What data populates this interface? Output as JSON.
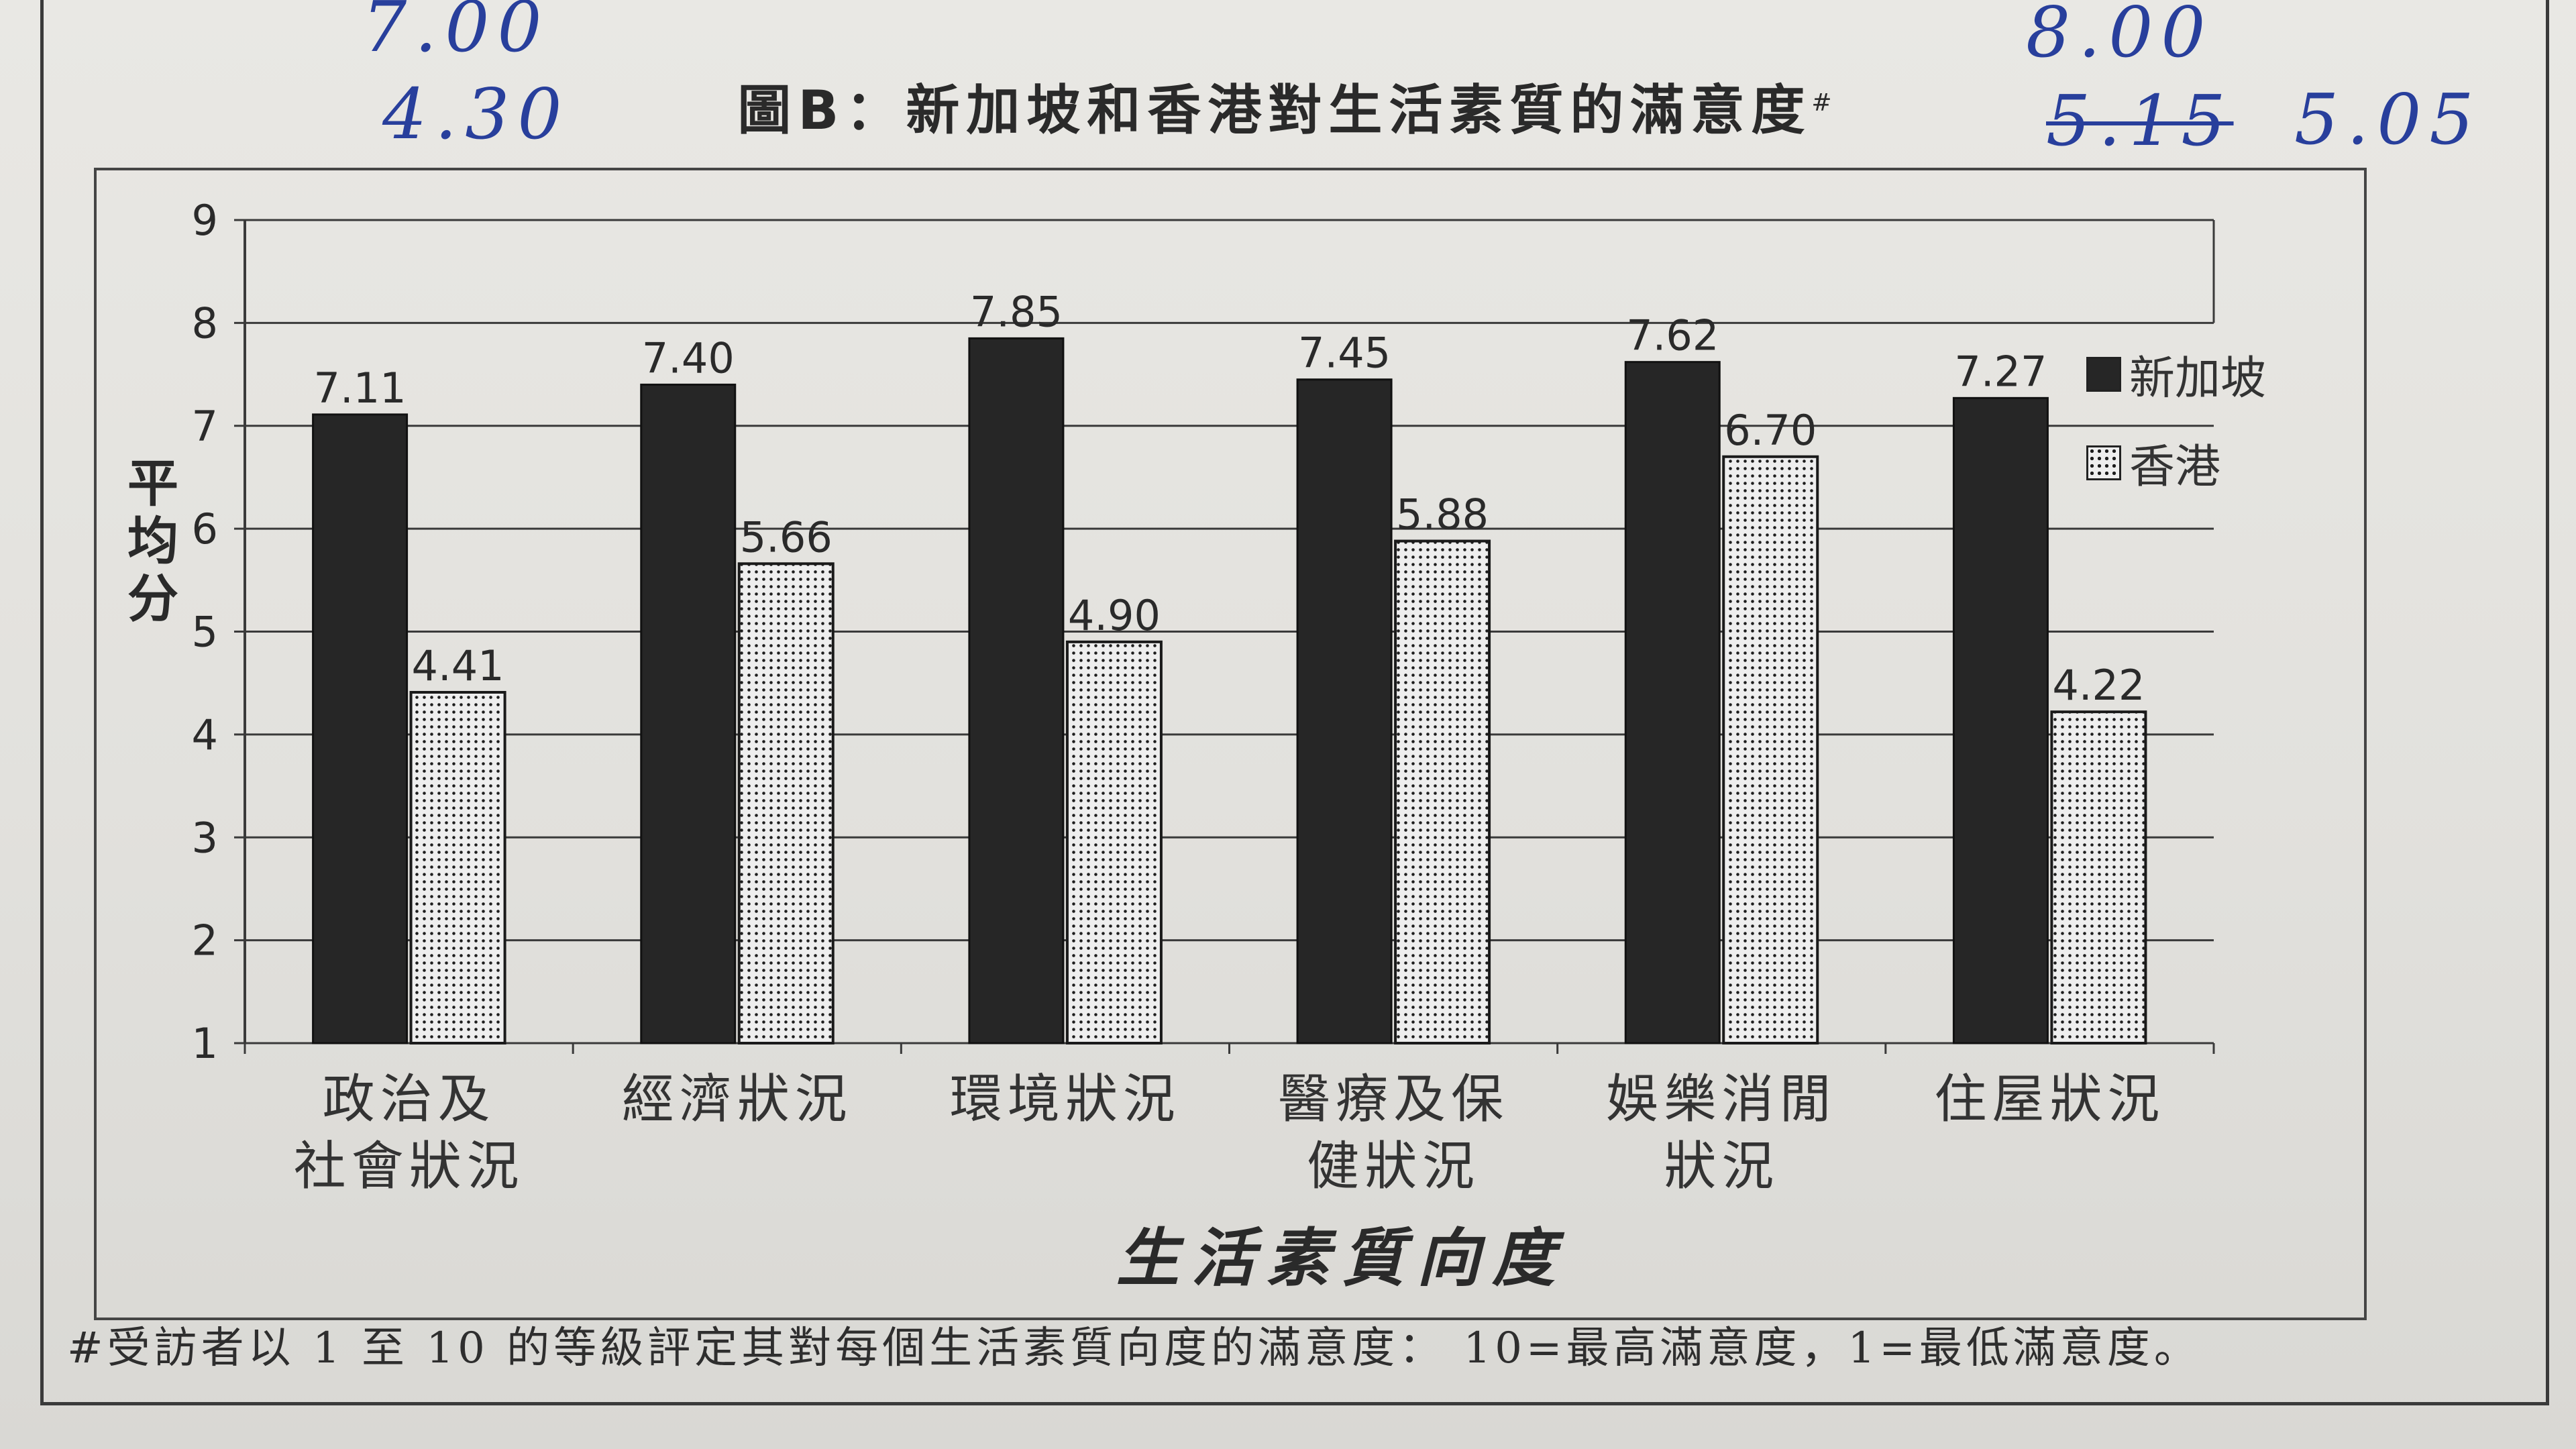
{
  "title": "圖B：新加坡和香港對生活素質的滿意度",
  "title_mark": "#",
  "handwritten": {
    "top_left_1": "7.00",
    "top_left_2": "4.30",
    "top_right_1": "8.00",
    "top_right_struck": "5.15",
    "top_right_2": "5.05"
  },
  "footnote": "#受訪者以 1 至 10 的等級評定其對每個生活素質向度的滿意度： 10=最高滿意度，1=最低滿意度。",
  "colors": {
    "singapore": "#262626",
    "hong_kong_fill": "#eeeeee",
    "dot": "#1d1d1d",
    "grid": "#3a3a3a",
    "ink": "#283f9c"
  },
  "chart_data": {
    "type": "bar",
    "title": "圖B：新加坡和香港對生活素質的滿意度",
    "categories": [
      [
        "政治及",
        "社會狀況"
      ],
      [
        "經濟狀況"
      ],
      [
        "環境狀況"
      ],
      [
        "醫療及保",
        "健狀況"
      ],
      [
        "娛樂消閒",
        "狀況"
      ],
      [
        "住屋狀況"
      ]
    ],
    "series": [
      {
        "name": "新加坡",
        "values": [
          7.11,
          7.4,
          7.85,
          7.45,
          7.62,
          7.27
        ],
        "labels": [
          "7.11",
          "7.40",
          "7.85",
          "7.45",
          "7.62",
          "7.27"
        ],
        "style": "solid-dark"
      },
      {
        "name": "香港",
        "values": [
          4.41,
          5.66,
          4.9,
          5.88,
          6.7,
          4.22
        ],
        "labels": [
          "4.41",
          "5.66",
          "4.90",
          "5.88",
          "6.70",
          "4.22"
        ],
        "style": "dotted"
      }
    ],
    "xlabel": "生活素質向度",
    "ylabel": "平均分",
    "ylim": [
      1,
      9
    ],
    "yticks": [
      1,
      2,
      3,
      4,
      5,
      6,
      7,
      8,
      9
    ],
    "grid": true,
    "legend": "right"
  }
}
